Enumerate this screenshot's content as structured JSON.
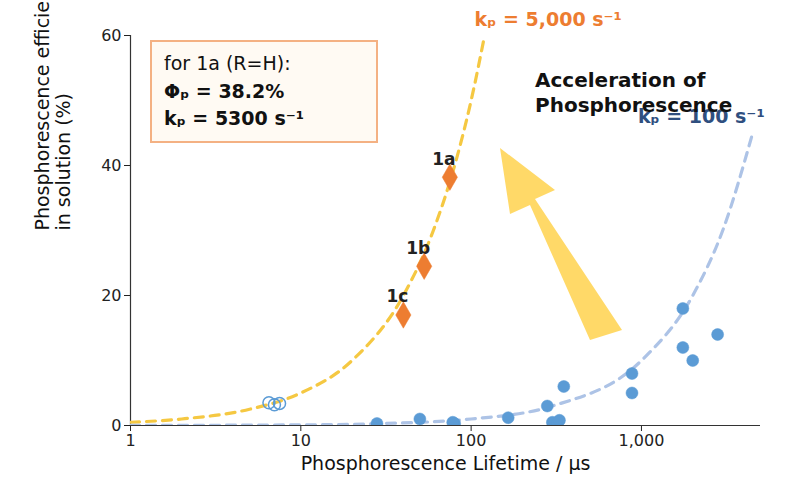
{
  "chart_data": {
    "type": "scatter",
    "x_label": "Phosphorescence Lifetime / μs",
    "y_label": "Phosphorescence efficiency\nin solution (%)",
    "log": "x",
    "grid": false,
    "xlim": [
      1,
      5000
    ],
    "xticks": [
      1,
      10,
      100,
      {
        "value": 1000,
        "label": "1,000"
      }
    ],
    "ylim": [
      0,
      60
    ],
    "yticks": [
      0,
      20,
      40,
      60
    ],
    "series": [
      {
        "name": "kₚ = 5,000 s⁻¹",
        "type": "line",
        "line_style": "dashed",
        "color": "#f5c842",
        "x": [
          1,
          2,
          5,
          10,
          20,
          40,
          60,
          80,
          100,
          120
        ],
        "values": [
          0.5,
          1,
          2.5,
          5,
          10,
          20,
          30,
          40,
          50,
          60
        ]
      },
      {
        "name": "kₚ = 100 s⁻¹",
        "type": "line",
        "line_style": "dashed",
        "color": "#adc3e6",
        "x": [
          1,
          10,
          30,
          100,
          300,
          1000,
          2000,
          3000,
          4500
        ],
        "values": [
          0.01,
          0.1,
          0.3,
          1,
          3,
          10,
          20,
          30,
          45
        ]
      },
      {
        "type": "scatter",
        "marker": "diamond",
        "color": "#ed7d31",
        "x": [
          75,
          53,
          40
        ],
        "values": [
          38.2,
          24.5,
          17
        ],
        "labels": [
          "1a",
          "1b",
          "1c"
        ]
      },
      {
        "type": "scatter",
        "marker": "circle",
        "color": "#5b9bd5",
        "x": [
          28,
          50,
          80,
          78,
          165,
          280,
          300,
          320,
          330,
          350,
          880,
          880,
          1750,
          1750,
          2000,
          2800
        ],
        "values": [
          0.3,
          1,
          0.3,
          0.5,
          1.2,
          3,
          0.5,
          0.3,
          0.8,
          6,
          8,
          5,
          18,
          12,
          10,
          14
        ]
      },
      {
        "type": "scatter",
        "marker": "open_circle",
        "color": "#5b9bd5",
        "x": [
          6.5,
          7,
          7.5
        ],
        "values": [
          3.5,
          3.2,
          3.4
        ]
      }
    ],
    "annotations": {
      "arrow_text": "Acceleration of Phosphorescence",
      "inset": [
        "for 1a (R=H):",
        "Φₚ = 38.2%",
        "kₚ = 5300 s⁻¹"
      ]
    }
  }
}
